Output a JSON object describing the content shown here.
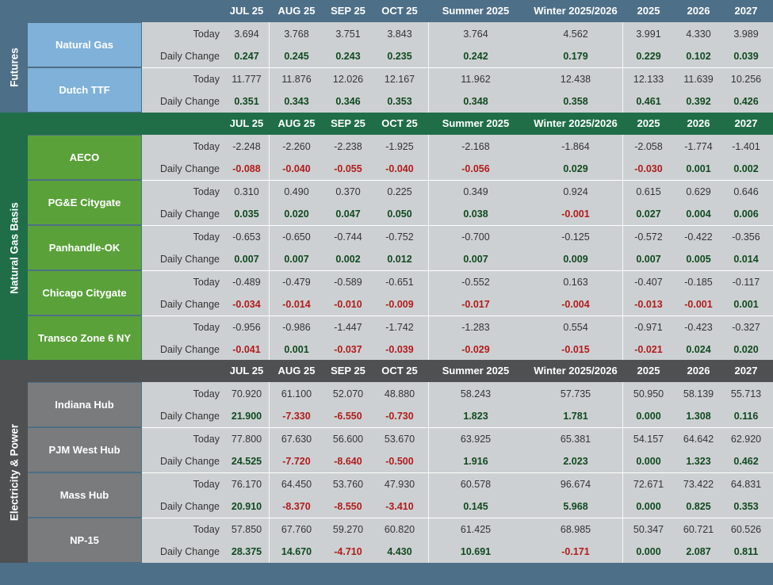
{
  "columns": [
    "JUL 25",
    "AUG 25",
    "SEP 25",
    "OCT 25",
    "Summer 2025",
    "Winter 2025/2026",
    "2025",
    "2026",
    "2027"
  ],
  "row_labels": {
    "today": "Today",
    "change": "Daily Change"
  },
  "colors": {
    "futures_header": "#4d6f87",
    "futures_name": "#7fb1d9",
    "basis_header": "#1f6e48",
    "basis_name": "#5aa13a",
    "power_header": "#4f5052",
    "power_name": "#7a7b7d",
    "grid": "#cdd0d2",
    "positive": "#0f4a1f",
    "negative": "#b01c1c"
  },
  "sections": [
    {
      "label": "Futures",
      "rows": [
        {
          "name": "Natural Gas",
          "today": [
            "3.694",
            "3.768",
            "3.751",
            "3.843",
            "3.764",
            "4.562",
            "3.991",
            "4.330",
            "3.989"
          ],
          "change": [
            "0.247",
            "0.245",
            "0.243",
            "0.235",
            "0.242",
            "0.179",
            "0.229",
            "0.102",
            "0.039"
          ]
        },
        {
          "name": "Dutch TTF",
          "today": [
            "11.777",
            "11.876",
            "12.026",
            "12.167",
            "11.962",
            "12.438",
            "12.133",
            "11.639",
            "10.256"
          ],
          "change": [
            "0.351",
            "0.343",
            "0.346",
            "0.353",
            "0.348",
            "0.358",
            "0.461",
            "0.392",
            "0.426"
          ]
        }
      ]
    },
    {
      "label": "Natural Gas Basis",
      "rows": [
        {
          "name": "AECO",
          "today": [
            "-2.248",
            "-2.260",
            "-2.238",
            "-1.925",
            "-2.168",
            "-1.864",
            "-2.058",
            "-1.774",
            "-1.401"
          ],
          "change": [
            "-0.088",
            "-0.040",
            "-0.055",
            "-0.040",
            "-0.056",
            "0.029",
            "-0.030",
            "0.001",
            "0.002"
          ]
        },
        {
          "name": "PG&E Citygate",
          "today": [
            "0.310",
            "0.490",
            "0.370",
            "0.225",
            "0.349",
            "0.924",
            "0.615",
            "0.629",
            "0.646"
          ],
          "change": [
            "0.035",
            "0.020",
            "0.047",
            "0.050",
            "0.038",
            "-0.001",
            "0.027",
            "0.004",
            "0.006"
          ]
        },
        {
          "name": "Panhandle-OK",
          "today": [
            "-0.653",
            "-0.650",
            "-0.744",
            "-0.752",
            "-0.700",
            "-0.125",
            "-0.572",
            "-0.422",
            "-0.356"
          ],
          "change": [
            "0.007",
            "0.007",
            "0.002",
            "0.012",
            "0.007",
            "0.009",
            "0.007",
            "0.005",
            "0.014"
          ]
        },
        {
          "name": "Chicago Citygate",
          "today": [
            "-0.489",
            "-0.479",
            "-0.589",
            "-0.651",
            "-0.552",
            "0.163",
            "-0.407",
            "-0.185",
            "-0.117"
          ],
          "change": [
            "-0.034",
            "-0.014",
            "-0.010",
            "-0.009",
            "-0.017",
            "-0.004",
            "-0.013",
            "-0.001",
            "0.001"
          ]
        },
        {
          "name": "Transco Zone 6 NY",
          "today": [
            "-0.956",
            "-0.986",
            "-1.447",
            "-1.742",
            "-1.283",
            "0.554",
            "-0.971",
            "-0.423",
            "-0.327"
          ],
          "change": [
            "-0.041",
            "0.001",
            "-0.037",
            "-0.039",
            "-0.029",
            "-0.015",
            "-0.021",
            "0.024",
            "0.020"
          ]
        }
      ]
    },
    {
      "label": "Electricity & Power",
      "rows": [
        {
          "name": "Indiana Hub",
          "today": [
            "70.920",
            "61.100",
            "52.070",
            "48.880",
            "58.243",
            "57.735",
            "50.950",
            "58.139",
            "55.713"
          ],
          "change": [
            "21.900",
            "-7.330",
            "-6.550",
            "-0.730",
            "1.823",
            "1.781",
            "0.000",
            "1.308",
            "0.116"
          ]
        },
        {
          "name": "PJM West Hub",
          "today": [
            "77.800",
            "67.630",
            "56.600",
            "53.670",
            "63.925",
            "65.381",
            "54.157",
            "64.642",
            "62.920"
          ],
          "change": [
            "24.525",
            "-7.720",
            "-8.640",
            "-0.500",
            "1.916",
            "2.023",
            "0.000",
            "1.323",
            "0.462"
          ]
        },
        {
          "name": "Mass Hub",
          "today": [
            "76.170",
            "64.450",
            "53.760",
            "47.930",
            "60.578",
            "96.674",
            "72.671",
            "73.422",
            "64.831"
          ],
          "change": [
            "20.910",
            "-8.370",
            "-8.550",
            "-3.410",
            "0.145",
            "5.968",
            "0.000",
            "0.825",
            "0.353"
          ]
        },
        {
          "name": "NP-15",
          "today": [
            "57.850",
            "67.760",
            "59.270",
            "60.820",
            "61.425",
            "68.985",
            "50.347",
            "60.721",
            "60.526"
          ],
          "change": [
            "28.375",
            "14.670",
            "-4.710",
            "4.430",
            "10.691",
            "-0.171",
            "0.000",
            "2.087",
            "0.811"
          ]
        }
      ]
    }
  ]
}
